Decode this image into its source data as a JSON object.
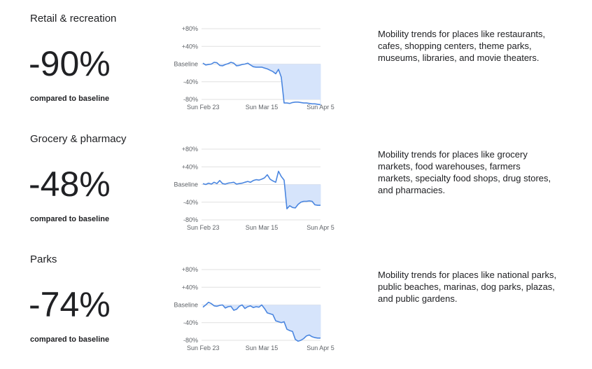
{
  "sections": [
    {
      "title": "Retail & recreation",
      "value_text": "-90%",
      "caption": "compared to baseline",
      "description": [
        "Mobility trends for places like restaurants,",
        "cafes, shopping centers, theme parks,",
        "museums, libraries, and movie theaters."
      ]
    },
    {
      "title": "Grocery & pharmacy",
      "value_text": "-48%",
      "caption": "compared to baseline",
      "description": [
        "Mobility trends for places like grocery",
        "markets, food warehouses, farmers",
        "markets, specialty food shops, drug stores,",
        "and pharmacies."
      ]
    },
    {
      "title": "Parks",
      "value_text": "-74%",
      "caption": "compared to baseline",
      "description": [
        "Mobility trends for places like national parks,",
        "public beaches, marinas, dog parks, plazas,",
        "and public gardens."
      ]
    }
  ],
  "chart_data": [
    {
      "type": "line",
      "color": "#4a86e0",
      "fill": "#d6e4fb",
      "categories": [
        "Sun Feb 23",
        null,
        null,
        null,
        null,
        null,
        null,
        null,
        null,
        null,
        null,
        null,
        null,
        null,
        null,
        null,
        null,
        null,
        null,
        null,
        null,
        "Sun Mar 15",
        null,
        null,
        null,
        null,
        null,
        null,
        null,
        null,
        null,
        null,
        null,
        null,
        null,
        null,
        null,
        null,
        null,
        null,
        null,
        null,
        "Sun Apr 5"
      ],
      "values": [
        2,
        -2,
        -1,
        0,
        4,
        3,
        -3,
        -4,
        -1,
        1,
        4,
        2,
        -4,
        -3,
        -1,
        0,
        2,
        -2,
        -6,
        -7,
        -7,
        -7,
        -9,
        -11,
        -14,
        -17,
        -22,
        -12,
        -30,
        -88,
        -88,
        -89,
        -87,
        -86,
        -86,
        -87,
        -88,
        -88,
        -89,
        -90,
        -90,
        -91,
        -92
      ],
      "ylim": [
        -80,
        80
      ],
      "yticks": [
        {
          "value": 80,
          "label": "+80%"
        },
        {
          "value": 40,
          "label": "+40%"
        },
        {
          "value": 0,
          "label": "Baseline"
        },
        {
          "value": -40,
          "label": "-40%"
        },
        {
          "value": -80,
          "label": "-80%"
        }
      ],
      "grid": true
    },
    {
      "type": "line",
      "color": "#4a86e0",
      "fill": "#d6e4fb",
      "categories": [
        "Sun Feb 23",
        null,
        null,
        null,
        null,
        null,
        null,
        null,
        null,
        null,
        null,
        null,
        null,
        null,
        null,
        null,
        null,
        null,
        null,
        null,
        null,
        "Sun Mar 15",
        null,
        null,
        null,
        null,
        null,
        null,
        null,
        null,
        null,
        null,
        null,
        null,
        null,
        null,
        null,
        null,
        null,
        null,
        null,
        null,
        "Sun Apr 5"
      ],
      "values": [
        2,
        0,
        3,
        1,
        5,
        2,
        9,
        2,
        1,
        3,
        4,
        5,
        1,
        2,
        3,
        5,
        7,
        5,
        9,
        11,
        10,
        12,
        15,
        22,
        12,
        8,
        5,
        30,
        18,
        10,
        -55,
        -48,
        -52,
        -53,
        -45,
        -40,
        -38,
        -38,
        -37,
        -38,
        -46,
        -47,
        -47
      ],
      "ylim": [
        -80,
        80
      ],
      "yticks": [
        {
          "value": 80,
          "label": "+80%"
        },
        {
          "value": 40,
          "label": "+40%"
        },
        {
          "value": 0,
          "label": "Baseline"
        },
        {
          "value": -40,
          "label": "-40%"
        },
        {
          "value": -80,
          "label": "-80%"
        }
      ],
      "grid": true
    },
    {
      "type": "line",
      "color": "#4a86e0",
      "fill": "#d6e4fb",
      "categories": [
        "Sun Feb 23",
        null,
        null,
        null,
        null,
        null,
        null,
        null,
        null,
        null,
        null,
        null,
        null,
        null,
        null,
        null,
        null,
        null,
        null,
        null,
        null,
        "Sun Mar 15",
        null,
        null,
        null,
        null,
        null,
        null,
        null,
        null,
        null,
        null,
        null,
        null,
        null,
        null,
        null,
        null,
        null,
        null,
        null,
        null,
        "Sun Apr 5"
      ],
      "values": [
        -5,
        0,
        6,
        3,
        -2,
        -3,
        -1,
        0,
        -7,
        -4,
        -3,
        -12,
        -10,
        -3,
        0,
        -8,
        -4,
        -2,
        -6,
        -4,
        -5,
        0,
        -8,
        -18,
        -20,
        -22,
        -36,
        -38,
        -40,
        -38,
        -55,
        -58,
        -60,
        -78,
        -82,
        -80,
        -76,
        -70,
        -68,
        -72,
        -74,
        -75,
        -75
      ],
      "ylim": [
        -80,
        80
      ],
      "yticks": [
        {
          "value": 80,
          "label": "+80%"
        },
        {
          "value": 40,
          "label": "+40%"
        },
        {
          "value": 0,
          "label": "Baseline"
        },
        {
          "value": -40,
          "label": "-40%"
        },
        {
          "value": -80,
          "label": "-80%"
        }
      ],
      "grid": true
    }
  ]
}
